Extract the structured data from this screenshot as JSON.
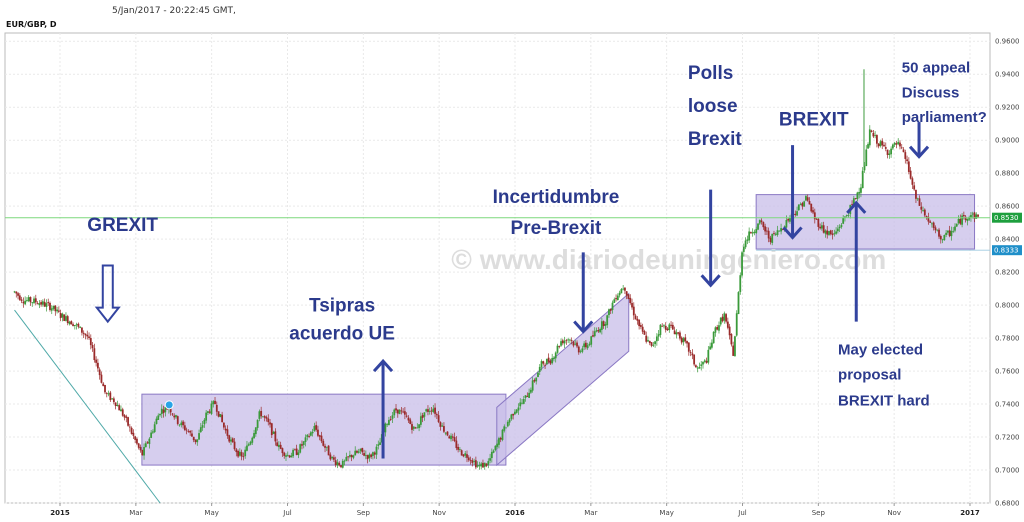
{
  "header": {
    "date_time": "5/Jan/2017 - 20:22:45 GMT,",
    "symbol": "EUR/GBP, D"
  },
  "watermark": "© www.diariodeuningeniero.com",
  "colors": {
    "up_candle": "#3a9a3a",
    "down_candle": "#9a2a2a",
    "box_fill": "#c8bde8",
    "box_stroke": "#8a78c4",
    "annotation": "#2b3a8c",
    "arrow": "#3344a0",
    "trendline": "#4fa9a8",
    "current_price_line": "#7dd87d",
    "current_price_tag": "#1e9f3e",
    "marker_price_tag": "#1f8fc9",
    "marker_dot": "#29a4e6"
  },
  "chart_data": {
    "type": "candlestick",
    "instrument": "EUR/GBP",
    "timeframe": "D",
    "ylim": [
      0.68,
      0.965
    ],
    "y_ticks": [
      "0.6800",
      "0.7000",
      "0.7200",
      "0.7400",
      "0.7600",
      "0.7800",
      "0.8000",
      "0.8200",
      "0.8400",
      "0.8600",
      "0.8800",
      "0.9000",
      "0.9200",
      "0.9400",
      "0.9600"
    ],
    "x_ticks": [
      {
        "label": "2015",
        "t": 0.0,
        "bold": true
      },
      {
        "label": "Mar",
        "t": 0.1667,
        "bold": false
      },
      {
        "label": "May",
        "t": 0.3333,
        "bold": false
      },
      {
        "label": "Jul",
        "t": 0.5,
        "bold": false
      },
      {
        "label": "Sep",
        "t": 0.6667,
        "bold": false
      },
      {
        "label": "Nov",
        "t": 0.8333,
        "bold": false
      },
      {
        "label": "2016",
        "t": 1.0,
        "bold": true
      },
      {
        "label": "Mar",
        "t": 1.1667,
        "bold": false
      },
      {
        "label": "May",
        "t": 1.3333,
        "bold": false
      },
      {
        "label": "Jul",
        "t": 1.5,
        "bold": false
      },
      {
        "label": "Sep",
        "t": 1.6667,
        "bold": false
      },
      {
        "label": "Nov",
        "t": 1.8333,
        "bold": false
      },
      {
        "label": "2017",
        "t": 2.0,
        "bold": true
      }
    ],
    "price_path": [
      [
        -0.1,
        0.808
      ],
      [
        -0.08,
        0.803
      ],
      [
        -0.05,
        0.802
      ],
      [
        -0.02,
        0.799
      ],
      [
        0.0,
        0.794
      ],
      [
        0.03,
        0.789
      ],
      [
        0.06,
        0.781
      ],
      [
        0.08,
        0.765
      ],
      [
        0.1,
        0.746
      ],
      [
        0.12,
        0.742
      ],
      [
        0.14,
        0.733
      ],
      [
        0.16,
        0.721
      ],
      [
        0.18,
        0.709
      ],
      [
        0.2,
        0.722
      ],
      [
        0.22,
        0.736
      ],
      [
        0.24,
        0.738
      ],
      [
        0.26,
        0.729
      ],
      [
        0.28,
        0.724
      ],
      [
        0.3,
        0.717
      ],
      [
        0.32,
        0.733
      ],
      [
        0.34,
        0.741
      ],
      [
        0.36,
        0.726
      ],
      [
        0.38,
        0.715
      ],
      [
        0.4,
        0.707
      ],
      [
        0.42,
        0.719
      ],
      [
        0.44,
        0.735
      ],
      [
        0.46,
        0.727
      ],
      [
        0.48,
        0.714
      ],
      [
        0.5,
        0.709
      ],
      [
        0.52,
        0.711
      ],
      [
        0.54,
        0.718
      ],
      [
        0.56,
        0.726
      ],
      [
        0.58,
        0.715
      ],
      [
        0.6,
        0.706
      ],
      [
        0.62,
        0.703
      ],
      [
        0.64,
        0.709
      ],
      [
        0.66,
        0.711
      ],
      [
        0.68,
        0.708
      ],
      [
        0.7,
        0.714
      ],
      [
        0.72,
        0.73
      ],
      [
        0.74,
        0.737
      ],
      [
        0.76,
        0.732
      ],
      [
        0.78,
        0.724
      ],
      [
        0.8,
        0.735
      ],
      [
        0.82,
        0.738
      ],
      [
        0.84,
        0.726
      ],
      [
        0.86,
        0.719
      ],
      [
        0.88,
        0.711
      ],
      [
        0.9,
        0.708
      ],
      [
        0.92,
        0.702
      ],
      [
        0.94,
        0.704
      ],
      [
        0.96,
        0.715
      ],
      [
        0.98,
        0.727
      ],
      [
        1.0,
        0.737
      ],
      [
        1.02,
        0.742
      ],
      [
        1.04,
        0.753
      ],
      [
        1.06,
        0.765
      ],
      [
        1.08,
        0.767
      ],
      [
        1.1,
        0.778
      ],
      [
        1.12,
        0.78
      ],
      [
        1.14,
        0.773
      ],
      [
        1.16,
        0.776
      ],
      [
        1.18,
        0.785
      ],
      [
        1.2,
        0.791
      ],
      [
        1.22,
        0.805
      ],
      [
        1.24,
        0.812
      ],
      [
        1.26,
        0.796
      ],
      [
        1.28,
        0.783
      ],
      [
        1.3,
        0.774
      ],
      [
        1.32,
        0.787
      ],
      [
        1.34,
        0.787
      ],
      [
        1.36,
        0.782
      ],
      [
        1.38,
        0.774
      ],
      [
        1.4,
        0.761
      ],
      [
        1.42,
        0.766
      ],
      [
        1.44,
        0.785
      ],
      [
        1.46,
        0.794
      ],
      [
        1.48,
        0.77
      ],
      [
        1.5,
        0.836
      ],
      [
        1.52,
        0.845
      ],
      [
        1.54,
        0.85
      ],
      [
        1.56,
        0.84
      ],
      [
        1.58,
        0.845
      ],
      [
        1.6,
        0.852
      ],
      [
        1.62,
        0.858
      ],
      [
        1.64,
        0.865
      ],
      [
        1.66,
        0.852
      ],
      [
        1.68,
        0.845
      ],
      [
        1.7,
        0.842
      ],
      [
        1.72,
        0.851
      ],
      [
        1.74,
        0.86
      ],
      [
        1.76,
        0.873
      ],
      [
        1.78,
        0.905
      ],
      [
        1.8,
        0.898
      ],
      [
        1.82,
        0.893
      ],
      [
        1.84,
        0.898
      ],
      [
        1.86,
        0.888
      ],
      [
        1.88,
        0.865
      ],
      [
        1.9,
        0.855
      ],
      [
        1.92,
        0.846
      ],
      [
        1.94,
        0.84
      ],
      [
        1.96,
        0.845
      ],
      [
        1.98,
        0.852
      ],
      [
        2.0,
        0.855
      ],
      [
        2.02,
        0.853
      ]
    ],
    "current_price": {
      "value": 0.853,
      "label": "0.8530"
    },
    "marker_price": {
      "value": 0.8333,
      "label": "0.8333"
    },
    "boxes": [
      {
        "name": "range-2015",
        "t0": 0.18,
        "t1": 0.98,
        "y0": 0.703,
        "y1": 0.746
      },
      {
        "name": "range-2016",
        "t0": 1.53,
        "t1": 2.01,
        "y0": 0.834,
        "y1": 0.867
      }
    ],
    "channel": {
      "t0": 0.96,
      "t1": 1.25,
      "bottom0": 0.703,
      "bottom1": 0.772,
      "height": 0.035
    },
    "trendline": {
      "t0": -0.1,
      "y0": 0.797,
      "t1": 0.22,
      "y1": 0.68
    },
    "annotations": [
      {
        "name": "grexit-label",
        "text": "GREXIT",
        "t": 0.06,
        "y": 0.845,
        "size": 19
      },
      {
        "name": "tsipras-label",
        "text": "Tsipras",
        "t": 0.62,
        "y": 0.796,
        "size": 19
      },
      {
        "name": "tsipras-label-2",
        "text": "acuerdo UE",
        "t": 0.62,
        "y": 0.779,
        "size": 19
      },
      {
        "name": "incertidumbre-label",
        "text": "Incertidumbre",
        "t": 1.09,
        "y": 0.862,
        "size": 19
      },
      {
        "name": "incertidumbre-label-2",
        "text": "Pre-Brexit",
        "t": 1.09,
        "y": 0.843,
        "size": 19
      },
      {
        "name": "polls-label",
        "text": "Polls",
        "t": 1.38,
        "y": 0.937,
        "size": 19
      },
      {
        "name": "polls-label-2",
        "text": "loose",
        "t": 1.38,
        "y": 0.917,
        "size": 19
      },
      {
        "name": "polls-label-3",
        "text": "Brexit",
        "t": 1.38,
        "y": 0.897,
        "size": 19
      },
      {
        "name": "brexit-label",
        "text": "BREXIT",
        "t": 1.58,
        "y": 0.909,
        "size": 19
      },
      {
        "name": "may-label",
        "text": "May elected",
        "t": 1.71,
        "y": 0.77,
        "size": 15
      },
      {
        "name": "may-label-2",
        "text": "proposal",
        "t": 1.71,
        "y": 0.755,
        "size": 15
      },
      {
        "name": "may-label-3",
        "text": "BREXIT hard",
        "t": 1.71,
        "y": 0.739,
        "size": 15
      },
      {
        "name": "appeal-label",
        "text": "50 appeal",
        "t": 1.85,
        "y": 0.941,
        "size": 15
      },
      {
        "name": "appeal-label-2",
        "text": "Discuss",
        "t": 1.85,
        "y": 0.926,
        "size": 15
      },
      {
        "name": "appeal-label-3",
        "text": "parliament?",
        "t": 1.85,
        "y": 0.911,
        "size": 15
      }
    ],
    "arrows": [
      {
        "name": "grexit-arrow",
        "kind": "hollow",
        "t": 0.105,
        "from": 0.824,
        "to": 0.79
      },
      {
        "name": "tsipras-arrow",
        "kind": "up-line",
        "t": 0.71,
        "from": 0.707,
        "to": 0.766
      },
      {
        "name": "incertidumbre-arrow",
        "kind": "line",
        "t": 1.15,
        "from": 0.832,
        "to": 0.784
      },
      {
        "name": "polls-arrow",
        "kind": "line",
        "t": 1.43,
        "from": 0.87,
        "to": 0.812
      },
      {
        "name": "brexit-arrow",
        "kind": "line",
        "t": 1.61,
        "from": 0.897,
        "to": 0.841
      },
      {
        "name": "may-arrow",
        "kind": "up-line",
        "t": 1.75,
        "from": 0.79,
        "to": 0.862
      },
      {
        "name": "appeal-arrow",
        "kind": "line",
        "t": 1.888,
        "from": 0.911,
        "to": 0.89
      }
    ]
  }
}
